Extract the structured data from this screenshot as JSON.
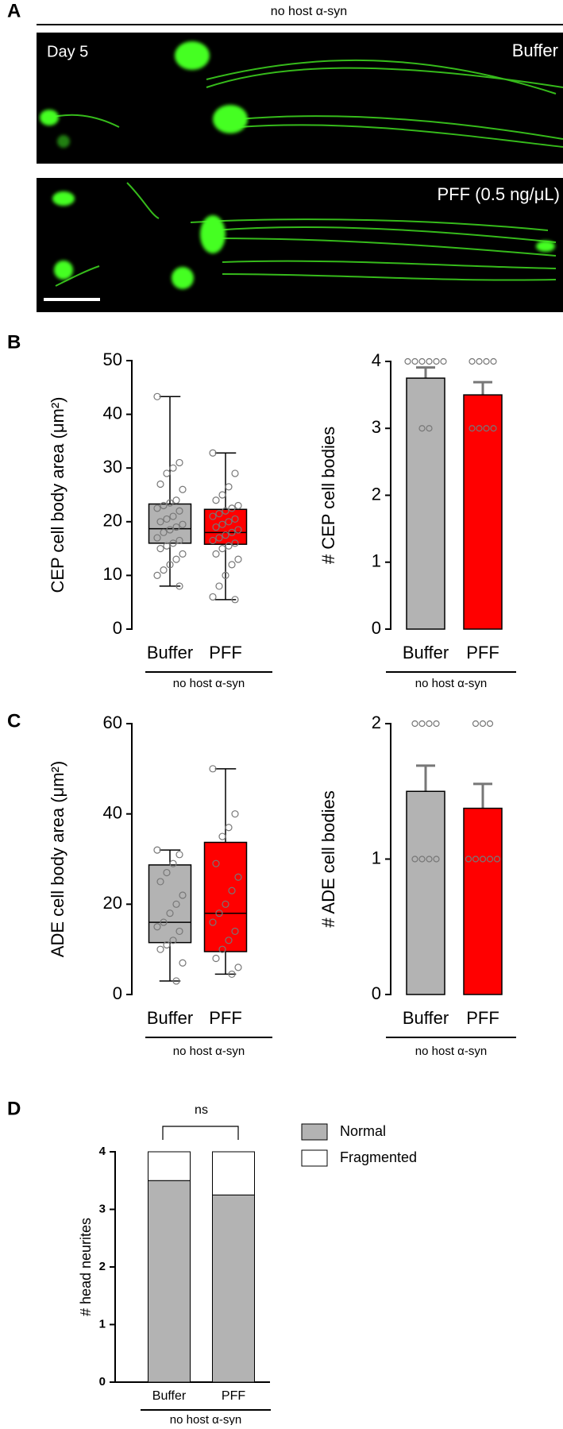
{
  "panel_a": {
    "label": "A",
    "header": "no host α-syn",
    "day": "Day 5",
    "image_1_label": "Buffer",
    "image_2_label": "PFF (0.5 ng/μL)"
  },
  "panel_labels": [
    "B",
    "C",
    "D"
  ],
  "chart_data": [
    {
      "type": "box",
      "ylabel": "CEP cell body area (μm²)",
      "categories": [
        "Buffer",
        "PFF"
      ],
      "group_label": "no host α-syn",
      "ylim": [
        0,
        50
      ],
      "yticks": [
        0,
        10,
        20,
        30,
        40,
        50
      ],
      "boxes": [
        {
          "color": "#b3b3b3",
          "min": 8,
          "q1": 16,
          "median": 18.7,
          "q3": 23.3,
          "max": 43.3
        },
        {
          "color": "#ff0000",
          "min": 5.5,
          "q1": 15.8,
          "median": 18,
          "q3": 22.3,
          "max": 32.8
        }
      ],
      "points": [
        [
          43.3,
          31,
          30,
          29,
          27,
          26,
          24,
          23.5,
          23,
          22.5,
          22,
          21,
          20.5,
          20,
          19.5,
          19,
          18.5,
          18,
          17,
          16.5,
          16,
          15.5,
          15,
          14,
          13,
          12,
          11,
          10,
          8
        ],
        [
          32.8,
          29,
          26.5,
          25,
          24,
          23,
          22.5,
          22,
          21.5,
          21,
          20.5,
          20,
          19.5,
          19,
          18.5,
          18,
          17.5,
          17,
          16.5,
          16,
          15.5,
          15,
          14,
          13,
          12,
          10,
          8,
          6,
          5.5
        ]
      ]
    },
    {
      "type": "bar",
      "ylabel": "# CEP cell bodies",
      "categories": [
        "Buffer",
        "PFF"
      ],
      "group_label": "no host α-syn",
      "ylim": [
        0,
        4
      ],
      "yticks": [
        0,
        1,
        2,
        3,
        4
      ],
      "values": [
        3.75,
        3.5
      ],
      "errors": [
        0.16,
        0.19
      ],
      "colors": [
        "#b3b3b3",
        "#ff0000"
      ],
      "points": [
        [
          4,
          4,
          4,
          4,
          4,
          4,
          3,
          3
        ],
        [
          4,
          4,
          4,
          4,
          3,
          3,
          3,
          3
        ]
      ]
    },
    {
      "type": "box",
      "ylabel": "ADE cell body area (μm²)",
      "categories": [
        "Buffer",
        "PFF"
      ],
      "group_label": "no host α-syn",
      "ylim": [
        0,
        60
      ],
      "yticks": [
        0,
        20,
        40,
        60
      ],
      "boxes": [
        {
          "color": "#b3b3b3",
          "min": 3,
          "q1": 11.5,
          "median": 16,
          "q3": 28.7,
          "max": 32
        },
        {
          "color": "#ff0000",
          "min": 4.5,
          "q1": 9.5,
          "median": 18,
          "q3": 33.7,
          "max": 50
        }
      ],
      "points": [
        [
          32,
          31,
          29,
          27,
          25,
          22,
          20,
          18,
          16,
          15,
          14,
          12,
          11,
          10,
          7,
          3
        ],
        [
          50,
          40,
          37,
          35,
          29,
          26,
          23,
          20,
          18,
          16,
          14,
          12,
          10,
          8,
          6,
          4.5
        ]
      ]
    },
    {
      "type": "bar",
      "ylabel": "# ADE cell bodies",
      "categories": [
        "Buffer",
        "PFF"
      ],
      "group_label": "no host α-syn",
      "ylim": [
        0,
        2
      ],
      "yticks": [
        0,
        1,
        2
      ],
      "values": [
        1.5,
        1.375
      ],
      "errors": [
        0.19,
        0.18
      ],
      "colors": [
        "#b3b3b3",
        "#ff0000"
      ],
      "points": [
        [
          2,
          2,
          2,
          2,
          1,
          1,
          1,
          1
        ],
        [
          2,
          2,
          2,
          1,
          1,
          1,
          1,
          1
        ]
      ]
    },
    {
      "type": "stacked_bar",
      "ylabel": "# head neurites",
      "categories": [
        "Buffer",
        "PFF"
      ],
      "group_label": "no host α-syn",
      "ylim": [
        0,
        4
      ],
      "yticks": [
        0,
        1,
        2,
        3,
        4
      ],
      "annotation": "ns",
      "series": [
        {
          "name": "Normal",
          "color": "#b3b3b3",
          "values": [
            3.5,
            3.25
          ]
        },
        {
          "name": "Fragmented",
          "color": "#ffffff",
          "values": [
            0.5,
            0.75
          ]
        }
      ]
    }
  ]
}
